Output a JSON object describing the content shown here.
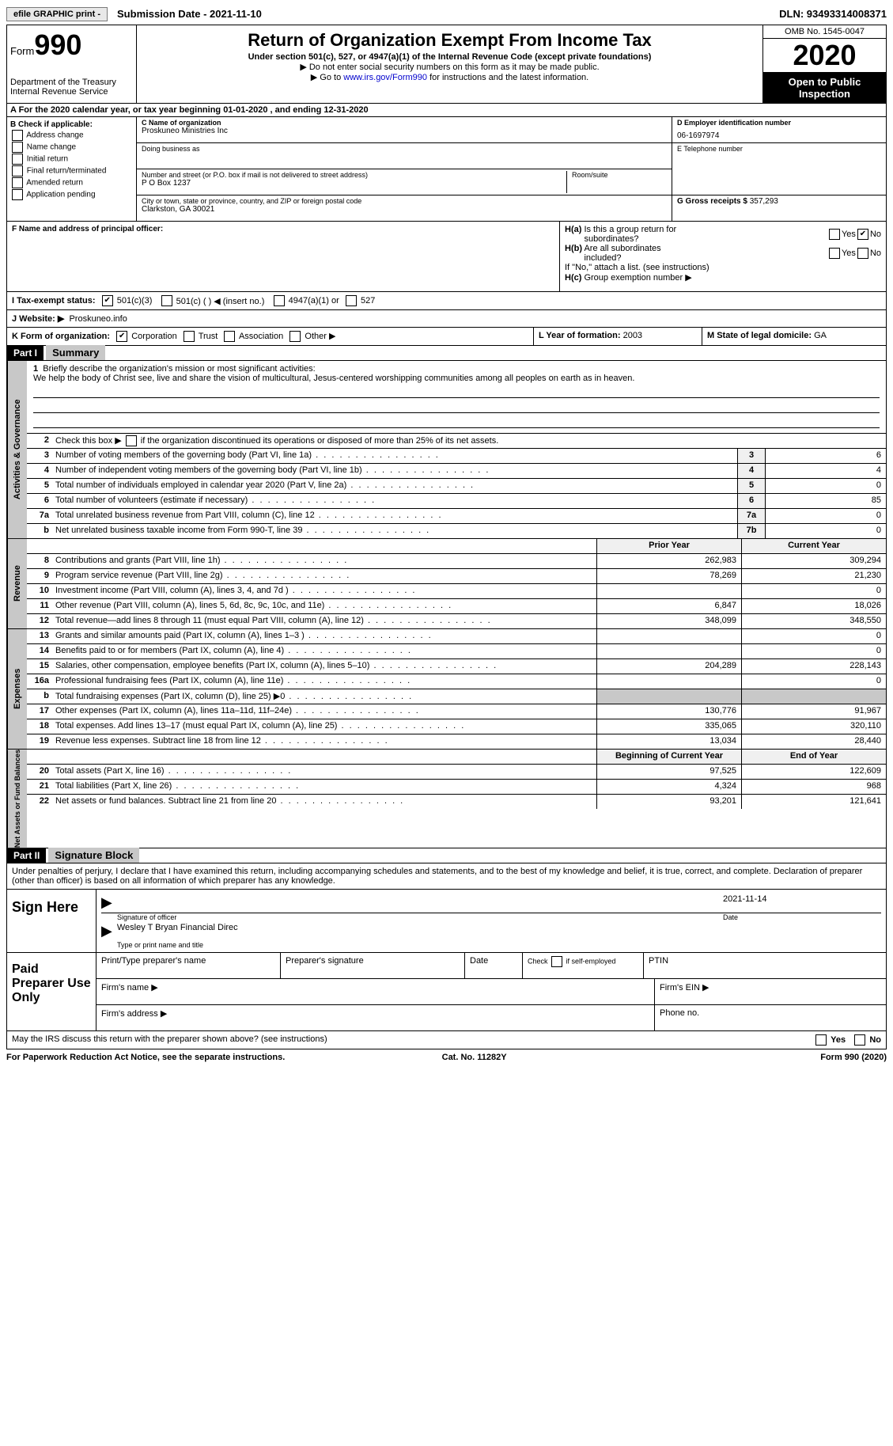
{
  "topbar": {
    "efile": "efile GRAPHIC print -",
    "submission": "Submission Date - 2021-11-10",
    "dln": "DLN: 93493314008371"
  },
  "header": {
    "form_label": "Form",
    "form_number": "990",
    "dept1": "Department of the Treasury",
    "dept2": "Internal Revenue Service",
    "title": "Return of Organization Exempt From Income Tax",
    "subtitle": "Under section 501(c), 527, or 4947(a)(1) of the Internal Revenue Code (except private foundations)",
    "note1": "▶ Do not enter social security numbers on this form as it may be made public.",
    "note2_pre": "▶ Go to ",
    "note2_link": "www.irs.gov/Form990",
    "note2_post": " for instructions and the latest information.",
    "omb": "OMB No. 1545-0047",
    "year": "2020",
    "inspection": "Open to Public Inspection"
  },
  "rowA": "A For the 2020 calendar year, or tax year beginning 01-01-2020   , and ending 12-31-2020",
  "colB": {
    "label": "B Check if applicable:",
    "opts": [
      "Address change",
      "Name change",
      "Initial return",
      "Final return/terminated",
      "Amended return",
      "Application pending"
    ]
  },
  "colC": {
    "name_label": "C Name of organization",
    "name": "Proskuneo Ministries Inc",
    "dba_label": "Doing business as",
    "dba": "",
    "street_label": "Number and street (or P.O. box if mail is not delivered to street address)",
    "street": "P O Box 1237",
    "room_label": "Room/suite",
    "city_label": "City or town, state or province, country, and ZIP or foreign postal code",
    "city": "Clarkston, GA   30021"
  },
  "colD": {
    "ein_label": "D Employer identification number",
    "ein": "06-1697974",
    "phone_label": "E Telephone number",
    "phone": "",
    "gross_label": "G Gross receipts $",
    "gross": "357,293"
  },
  "rowF": {
    "label": "F Name and address of principal officer:",
    "value": ""
  },
  "rowH": {
    "ha_label": "H(a)  Is this a group return for subordinates?",
    "ha_no_checked": true,
    "hb_label": "H(b)  Are all subordinates included?",
    "hb_note": "If \"No,\" attach a list. (see instructions)",
    "hc_label": "H(c)  Group exemption number ▶"
  },
  "rowI": {
    "label": "I  Tax-exempt status:",
    "opt1": "501(c)(3)",
    "opt2": "501(c) (  ) ◀ (insert no.)",
    "opt3": "4947(a)(1) or",
    "opt4": "527"
  },
  "rowJ": {
    "label": "J  Website: ▶",
    "value": "Proskuneo.info"
  },
  "rowK": {
    "label": "K Form of organization:",
    "opts": [
      "Corporation",
      "Trust",
      "Association",
      "Other ▶"
    ],
    "l_label": "L Year of formation:",
    "l_val": "2003",
    "m_label": "M State of legal domicile:",
    "m_val": "GA"
  },
  "part1": {
    "header": "Part I",
    "title": "Summary"
  },
  "governance": {
    "label": "Activities & Governance",
    "line1_label": "1   Briefly describe the organization's mission or most significant activities:",
    "line1_text": "We help the body of Christ see, live and share the vision of multicultural, Jesus-centered worshipping communities among all peoples on earth as in heaven.",
    "line2": "2   Check this box ▶ ☐  if the organization discontinued its operations or disposed of more than 25% of its net assets.",
    "rows": [
      {
        "n": "3",
        "desc": "Number of voting members of the governing body (Part VI, line 1a)",
        "box": "3",
        "val": "6"
      },
      {
        "n": "4",
        "desc": "Number of independent voting members of the governing body (Part VI, line 1b)",
        "box": "4",
        "val": "4"
      },
      {
        "n": "5",
        "desc": "Total number of individuals employed in calendar year 2020 (Part V, line 2a)",
        "box": "5",
        "val": "0"
      },
      {
        "n": "6",
        "desc": "Total number of volunteers (estimate if necessary)",
        "box": "6",
        "val": "85"
      },
      {
        "n": "7a",
        "desc": "Total unrelated business revenue from Part VIII, column (C), line 12",
        "box": "7a",
        "val": "0"
      },
      {
        "n": "b",
        "desc": "Net unrelated business taxable income from Form 990-T, line 39",
        "box": "7b",
        "val": "0"
      }
    ]
  },
  "revenue": {
    "label": "Revenue",
    "header_prior": "Prior Year",
    "header_curr": "Current Year",
    "rows": [
      {
        "n": "8",
        "desc": "Contributions and grants (Part VIII, line 1h)",
        "prior": "262,983",
        "curr": "309,294"
      },
      {
        "n": "9",
        "desc": "Program service revenue (Part VIII, line 2g)",
        "prior": "78,269",
        "curr": "21,230"
      },
      {
        "n": "10",
        "desc": "Investment income (Part VIII, column (A), lines 3, 4, and 7d )",
        "prior": "",
        "curr": "0"
      },
      {
        "n": "11",
        "desc": "Other revenue (Part VIII, column (A), lines 5, 6d, 8c, 9c, 10c, and 11e)",
        "prior": "6,847",
        "curr": "18,026"
      },
      {
        "n": "12",
        "desc": "Total revenue—add lines 8 through 11 (must equal Part VIII, column (A), line 12)",
        "prior": "348,099",
        "curr": "348,550"
      }
    ]
  },
  "expenses": {
    "label": "Expenses",
    "rows": [
      {
        "n": "13",
        "desc": "Grants and similar amounts paid (Part IX, column (A), lines 1–3 )",
        "prior": "",
        "curr": "0"
      },
      {
        "n": "14",
        "desc": "Benefits paid to or for members (Part IX, column (A), line 4)",
        "prior": "",
        "curr": "0"
      },
      {
        "n": "15",
        "desc": "Salaries, other compensation, employee benefits (Part IX, column (A), lines 5–10)",
        "prior": "204,289",
        "curr": "228,143"
      },
      {
        "n": "16a",
        "desc": "Professional fundraising fees (Part IX, column (A), line 11e)",
        "prior": "",
        "curr": "0"
      },
      {
        "n": "b",
        "desc": "Total fundraising expenses (Part IX, column (D), line 25) ▶0",
        "prior": "SHADED",
        "curr": "SHADED"
      },
      {
        "n": "17",
        "desc": "Other expenses (Part IX, column (A), lines 11a–11d, 11f–24e)",
        "prior": "130,776",
        "curr": "91,967"
      },
      {
        "n": "18",
        "desc": "Total expenses. Add lines 13–17 (must equal Part IX, column (A), line 25)",
        "prior": "335,065",
        "curr": "320,110"
      },
      {
        "n": "19",
        "desc": "Revenue less expenses. Subtract line 18 from line 12",
        "prior": "13,034",
        "curr": "28,440"
      }
    ]
  },
  "netassets": {
    "label": "Net Assets or Fund Balances",
    "header_prior": "Beginning of Current Year",
    "header_curr": "End of Year",
    "rows": [
      {
        "n": "20",
        "desc": "Total assets (Part X, line 16)",
        "prior": "97,525",
        "curr": "122,609"
      },
      {
        "n": "21",
        "desc": "Total liabilities (Part X, line 26)",
        "prior": "4,324",
        "curr": "968"
      },
      {
        "n": "22",
        "desc": "Net assets or fund balances. Subtract line 21 from line 20",
        "prior": "93,201",
        "curr": "121,641"
      }
    ]
  },
  "part2": {
    "header": "Part II",
    "title": "Signature Block",
    "intro": "Under penalties of perjury, I declare that I have examined this return, including accompanying schedules and statements, and to the best of my knowledge and belief, it is true, correct, and complete. Declaration of preparer (other than officer) is based on all information of which preparer has any knowledge."
  },
  "sign": {
    "label": "Sign Here",
    "sig_officer": "Signature of officer",
    "date": "2021-11-14",
    "date_label": "Date",
    "name": "Wesley T Bryan Financial Direc",
    "name_label": "Type or print name and title"
  },
  "preparer": {
    "label": "Paid Preparer Use Only",
    "h1": "Print/Type preparer's name",
    "h2": "Preparer's signature",
    "h3": "Date",
    "h4_pre": "Check ☐ if self-employed",
    "h5": "PTIN",
    "firm_name": "Firm's name   ▶",
    "firm_ein": "Firm's EIN ▶",
    "firm_addr": "Firm's address ▶",
    "phone": "Phone no."
  },
  "footer": {
    "discuss": "May the IRS discuss this return with the preparer shown above? (see instructions)",
    "yes": "Yes",
    "no": "No",
    "paperwork": "For Paperwork Reduction Act Notice, see the separate instructions.",
    "cat": "Cat. No. 11282Y",
    "form": "Form 990 (2020)"
  }
}
